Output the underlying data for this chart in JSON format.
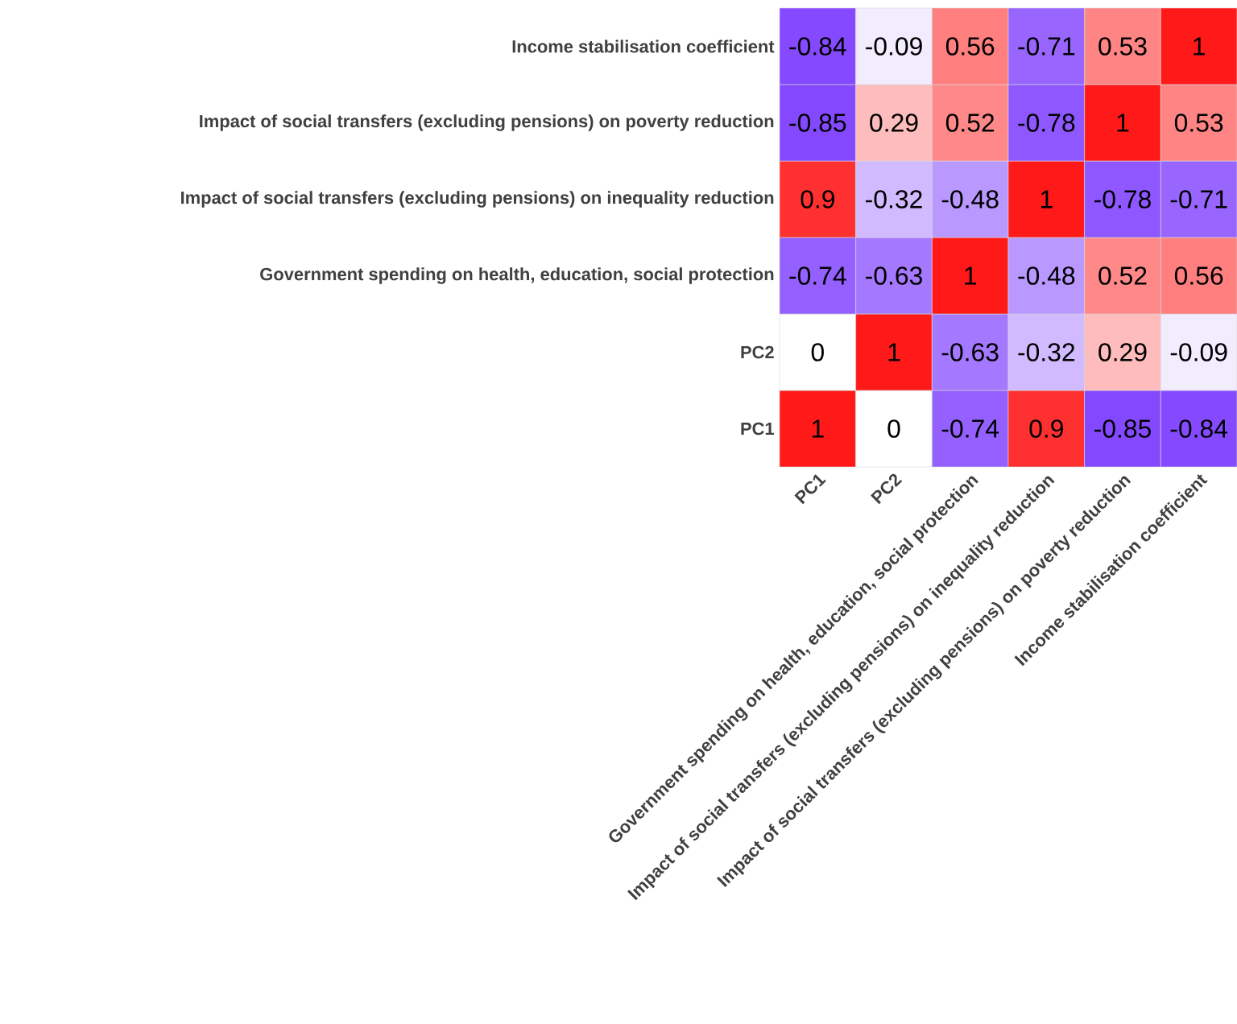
{
  "chart_data": {
    "type": "heatmap",
    "categories": [
      "PC1",
      "PC2",
      "Government spending on health, education, social protection",
      "Impact of social transfers (excluding pensions) on inequality reduction",
      "Impact of social transfers (excluding pensions) on poverty reduction",
      "Income stabilisation coefficient"
    ],
    "y_categories": [
      "Income stabilisation coefficient",
      "Impact of social transfers (excluding pensions) on poverty reduction",
      "Impact of social transfers (excluding pensions) on inequality reduction",
      "Government spending on health, education, social protection",
      "PC2",
      "PC1"
    ],
    "cells": [
      [
        -0.84,
        -0.09,
        0.56,
        -0.71,
        0.53,
        1
      ],
      [
        -0.85,
        0.29,
        0.52,
        -0.78,
        1,
        0.53
      ],
      [
        0.9,
        -0.32,
        -0.48,
        1,
        -0.78,
        -0.71
      ],
      [
        -0.74,
        -0.63,
        1,
        -0.48,
        0.52,
        0.56
      ],
      [
        0,
        1,
        -0.63,
        -0.32,
        0.29,
        -0.09
      ],
      [
        1,
        0,
        -0.74,
        0.9,
        -0.85,
        -0.84
      ]
    ],
    "data_labels": true
  }
}
